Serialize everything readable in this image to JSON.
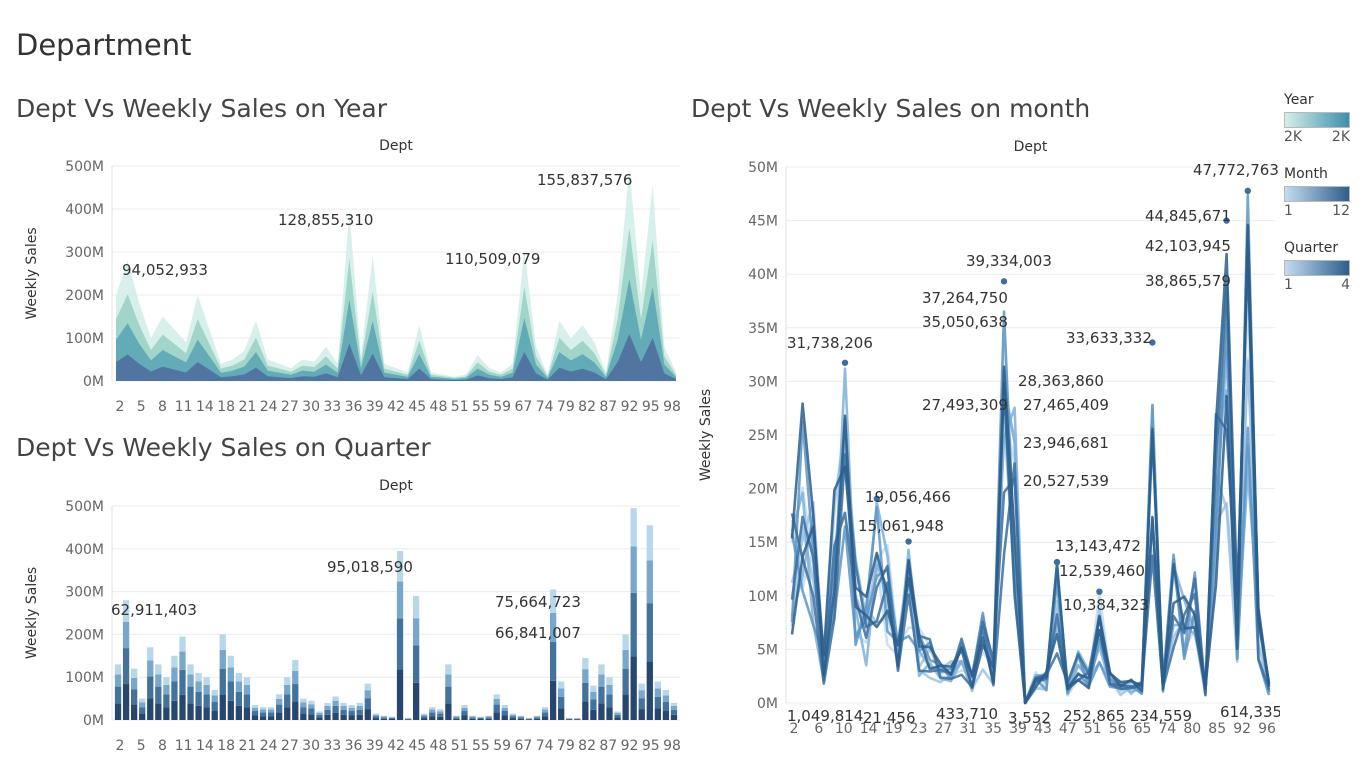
{
  "dashboard": {
    "title": "Department"
  },
  "sheets": {
    "year": {
      "title": "Dept Vs Weekly Sales on Year"
    },
    "quarter": {
      "title": "Dept Vs Weekly Sales on Quarter"
    },
    "month": {
      "title": "Dept Vs Weekly Sales on month"
    }
  },
  "legends": {
    "year": {
      "title": "Year",
      "min": "2K",
      "max": "2K",
      "color_from": "#d4eee9",
      "color_to": "#3d8fab"
    },
    "month": {
      "title": "Month",
      "min": "1",
      "max": "12",
      "color_from": "#c3dcf0",
      "color_to": "#2c5e8c"
    },
    "quarter": {
      "title": "Quarter",
      "min": "1",
      "max": "4",
      "color_from": "#c3dcf0",
      "color_to": "#2c5e8c"
    }
  },
  "chart_data": [
    {
      "type": "area",
      "id": "year",
      "header": "Dept",
      "ylabel": "Weekly Sales",
      "ylim": [
        0,
        500000000
      ],
      "ytick_labels": [
        "0M",
        "100M",
        "200M",
        "300M",
        "400M",
        "500M"
      ],
      "xtick_labels": [
        "2",
        "5",
        "8",
        "11",
        "14",
        "18",
        "21",
        "24",
        "27",
        "30",
        "33",
        "36",
        "39",
        "42",
        "45",
        "48",
        "51",
        "55",
        "59",
        "67",
        "74",
        "79",
        "82",
        "87",
        "92",
        "95",
        "98"
      ],
      "colors": [
        "#4f6f9e",
        "#5ba6b5",
        "#9bd1c7",
        "#d4eee9"
      ],
      "stack_totals": [
        200000000,
        280000000,
        180000000,
        100000000,
        150000000,
        120000000,
        90000000,
        200000000,
        120000000,
        40000000,
        50000000,
        70000000,
        140000000,
        50000000,
        40000000,
        30000000,
        50000000,
        45000000,
        80000000,
        40000000,
        395000000,
        60000000,
        290000000,
        40000000,
        30000000,
        20000000,
        130000000,
        20000000,
        15000000,
        10000000,
        15000000,
        60000000,
        30000000,
        20000000,
        40000000,
        305000000,
        80000000,
        15000000,
        140000000,
        100000000,
        130000000,
        90000000,
        20000000,
        200000000,
        495000000,
        200000000,
        455000000,
        80000000,
        20000000
      ],
      "annotations": [
        "94,052,933",
        "128,855,310",
        "110,509,079",
        "155,837,576"
      ]
    },
    {
      "type": "bar",
      "id": "quarter",
      "header": "Dept",
      "ylabel": "Weekly Sales",
      "ylim": [
        0,
        500000000
      ],
      "ytick_labels": [
        "0M",
        "100M",
        "200M",
        "300M",
        "400M",
        "500M"
      ],
      "xtick_labels": [
        "2",
        "5",
        "8",
        "11",
        "14",
        "18",
        "21",
        "24",
        "27",
        "30",
        "33",
        "36",
        "39",
        "42",
        "45",
        "48",
        "51",
        "55",
        "59",
        "67",
        "74",
        "79",
        "82",
        "87",
        "92",
        "95",
        "98"
      ],
      "colors": [
        "#28476e",
        "#43739d",
        "#79a7cb",
        "#b8d8ea"
      ],
      "bar_totals": [
        130000000,
        280000000,
        120000000,
        50000000,
        170000000,
        130000000,
        100000000,
        150000000,
        195000000,
        130000000,
        110000000,
        100000000,
        70000000,
        200000000,
        150000000,
        110000000,
        100000000,
        35000000,
        30000000,
        30000000,
        60000000,
        100000000,
        140000000,
        50000000,
        45000000,
        20000000,
        40000000,
        55000000,
        40000000,
        35000000,
        40000000,
        85000000,
        15000000,
        10000000,
        8000000,
        395000000,
        5000000,
        290000000,
        15000000,
        30000000,
        25000000,
        130000000,
        10000000,
        35000000,
        10000000,
        8000000,
        10000000,
        60000000,
        35000000,
        15000000,
        10000000,
        5000000,
        10000000,
        30000000,
        305000000,
        90000000,
        5000000,
        5000000,
        145000000,
        80000000,
        130000000,
        100000000,
        20000000,
        200000000,
        495000000,
        85000000,
        455000000,
        90000000,
        70000000,
        40000000
      ],
      "annotations": [
        "62,911,403",
        "95,018,590",
        "75,664,723",
        "66,841,007"
      ]
    },
    {
      "type": "line",
      "id": "month",
      "header": "Dept",
      "ylabel": "Weekly Sales",
      "ylim": [
        0,
        50000000
      ],
      "ytick_labels": [
        "0M",
        "5M",
        "10M",
        "15M",
        "20M",
        "25M",
        "30M",
        "35M",
        "40M",
        "45M",
        "50M"
      ],
      "xtick_labels": [
        "2",
        "6",
        "10",
        "14",
        "19",
        "23",
        "27",
        "31",
        "35",
        "39",
        "43",
        "47",
        "51",
        "56",
        "65",
        "74",
        "80",
        "85",
        "92",
        "96"
      ],
      "colors": [
        "#c3dcf0",
        "#9cc3e2",
        "#7fb0d8",
        "#5e95c4",
        "#3c6fa0",
        "#2c5e8c"
      ],
      "series_max": [
        18000000,
        28000000,
        20000000,
        5000000,
        20000000,
        31738206,
        14000000,
        10000000,
        19056466,
        15000000,
        6000000,
        15061948,
        7000000,
        6000000,
        4000000,
        4000000,
        6000000,
        3000000,
        8500000,
        4000000,
        39334003,
        28363860,
        3552,
        3000000,
        3000000,
        13143472,
        2000000,
        5000000,
        3000000,
        10384323,
        3000000,
        2000000,
        2500000,
        2000000,
        33633332,
        2000000,
        14000000,
        10000000,
        13000000,
        2000000,
        27000000,
        45000000,
        10000000,
        47772763,
        9000000,
        2000000
      ],
      "annotations": [
        "31,738,206",
        "19,056,466",
        "15,061,948",
        "39,334,003",
        "37,264,750",
        "35,050,638",
        "28,363,860",
        "27,493,309",
        "27,465,409",
        "23,946,681",
        "20,527,539",
        "13,143,472",
        "12,539,460",
        "10,384,323",
        "33,633,332",
        "44,845,671",
        "42,103,945",
        "38,865,579",
        "47,772,763",
        "1,049,814",
        "21,456",
        "433,710",
        "3,552",
        "252,865",
        "234,559",
        "614,335"
      ]
    }
  ]
}
